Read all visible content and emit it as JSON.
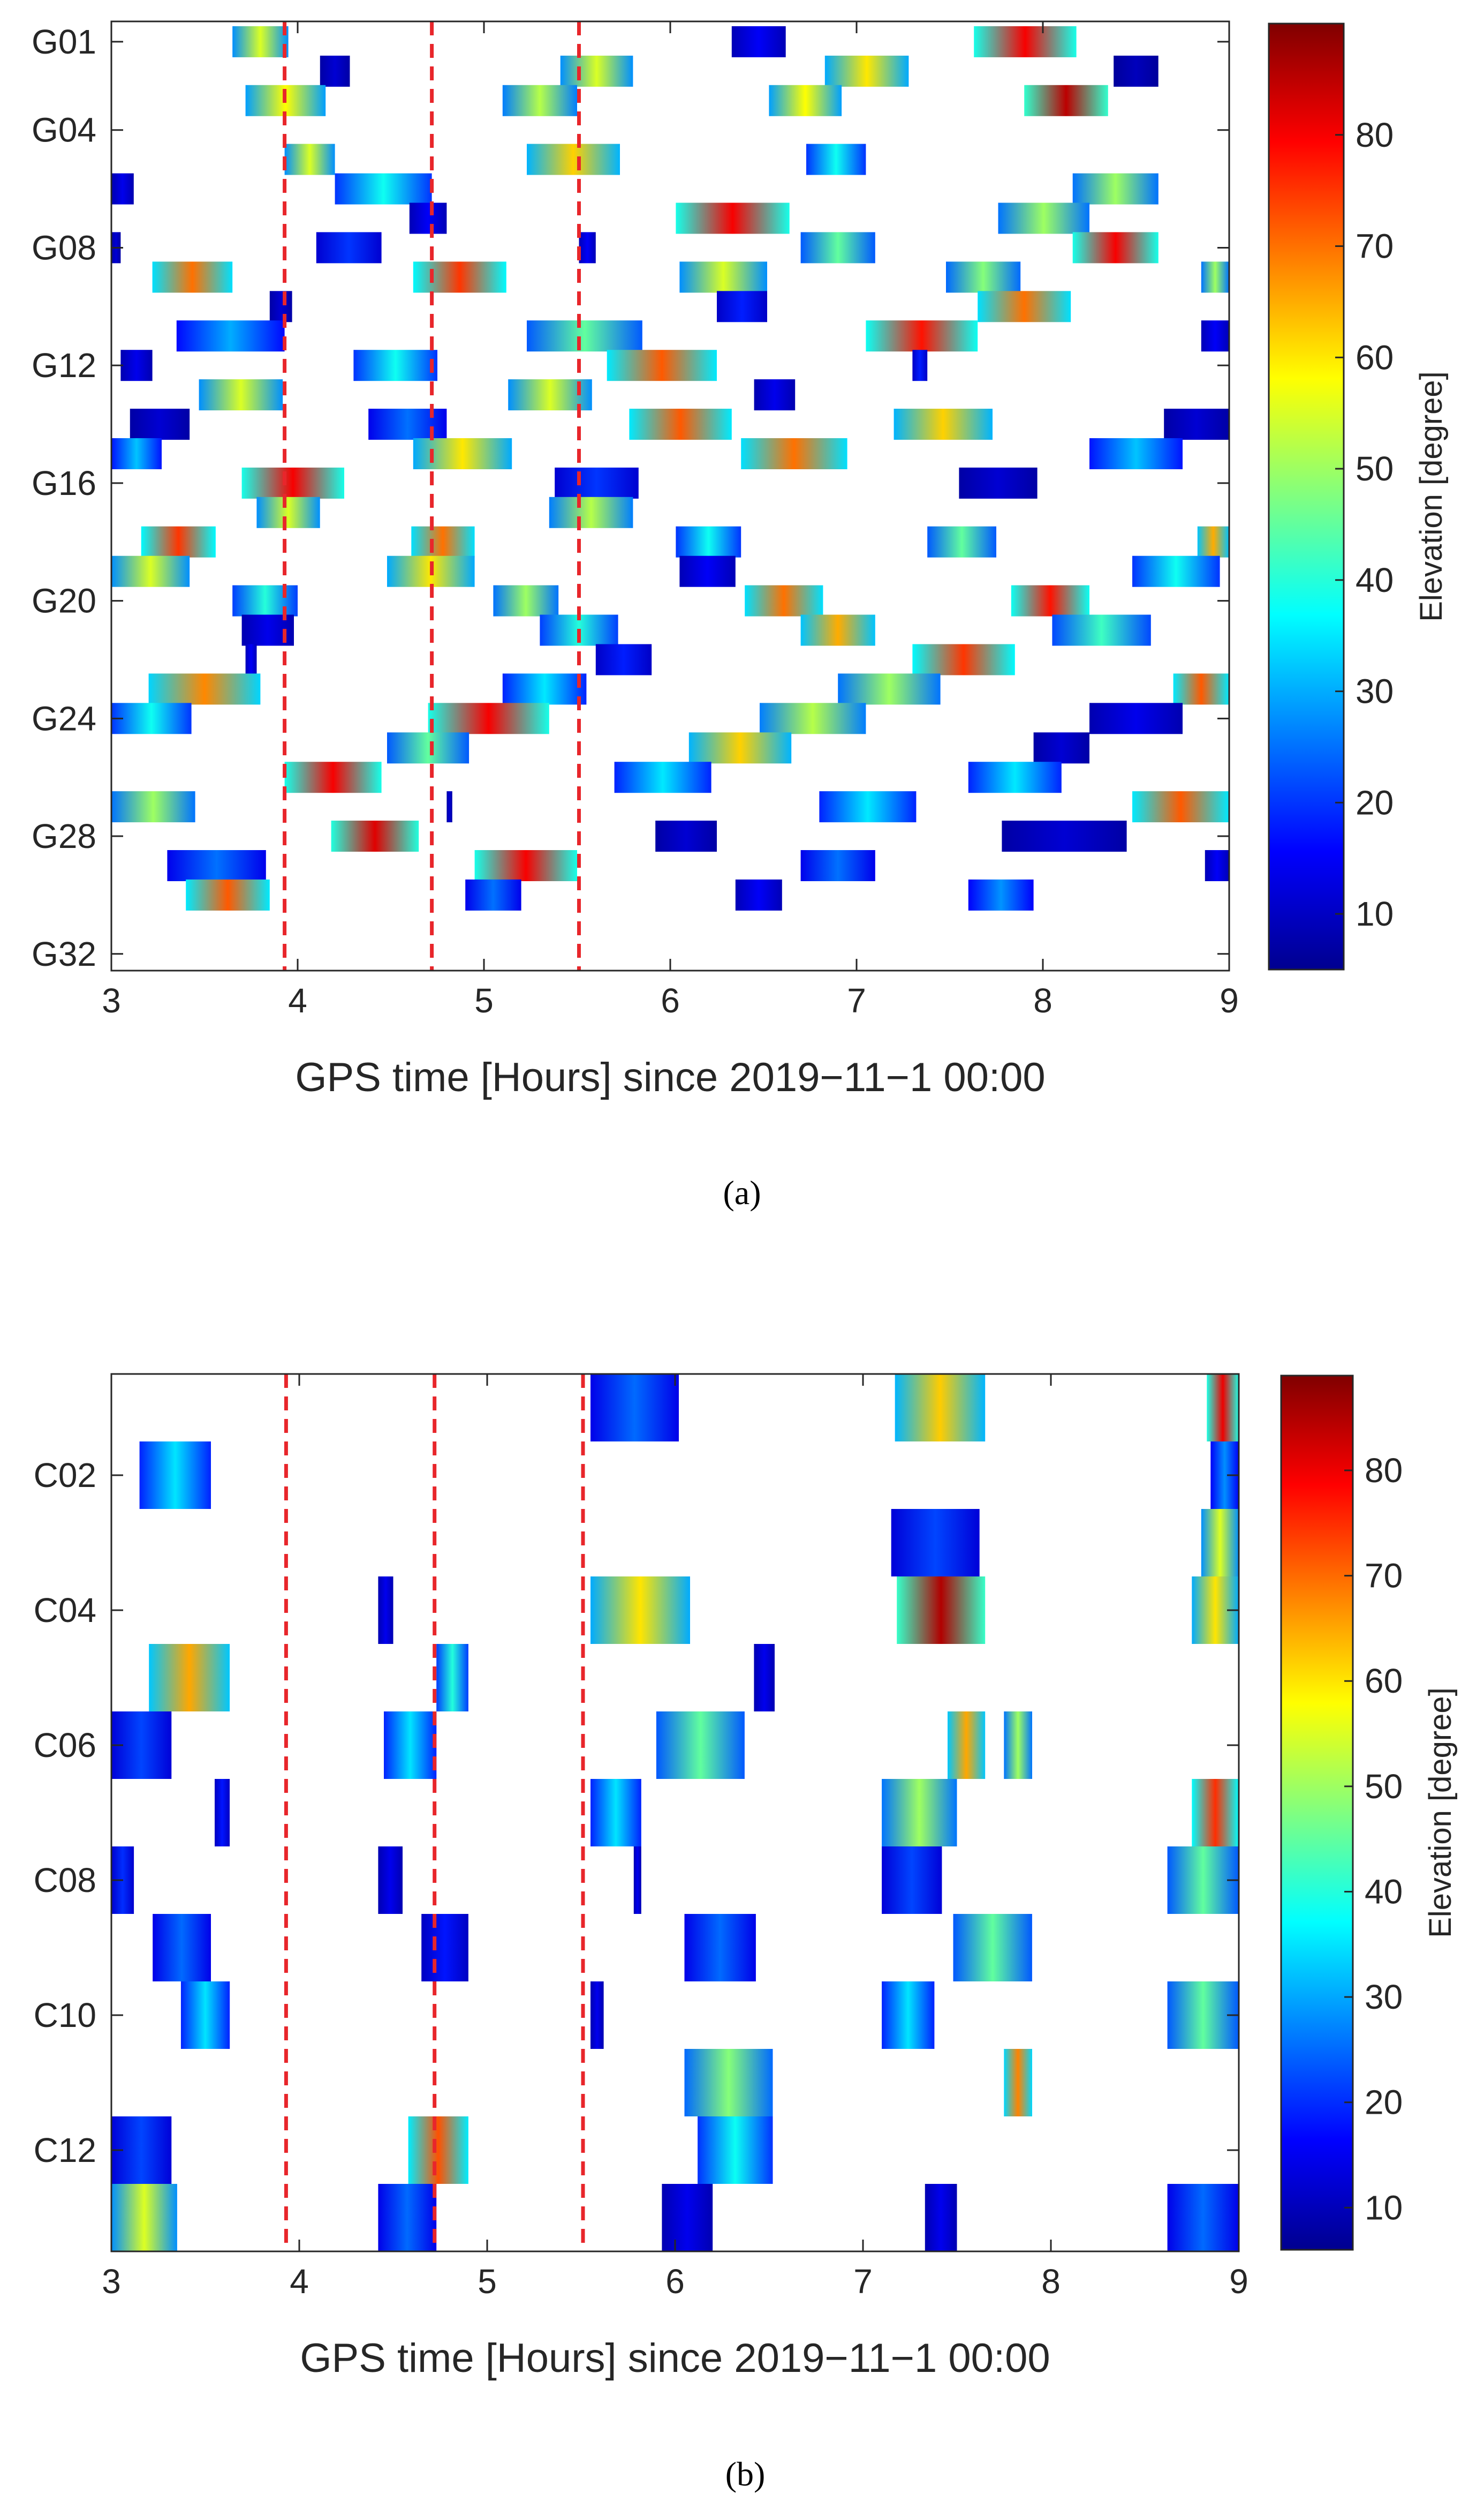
{
  "colors": {
    "ref_line": "#e8262b",
    "axis": "#262626",
    "background": "#ffffff"
  },
  "chart_data": [
    {
      "type": "heatmap",
      "panel": "a",
      "caption": "(a)",
      "title": "",
      "xlabel": "GPS time [Hours] since 2019−11−1 00:00",
      "xlim": [
        3,
        9
      ],
      "xticks": [
        3,
        4,
        5,
        6,
        7,
        8,
        9
      ],
      "ylim": [
        0.5,
        33
      ],
      "yticks": [
        1,
        4,
        8,
        12,
        16,
        20,
        24,
        28,
        32
      ],
      "ytick_labels": [
        "G01",
        "G04",
        "G08",
        "G12",
        "G16",
        "G20",
        "G24",
        "G28",
        "G32"
      ],
      "ref_lines": [
        3.93,
        4.72,
        5.51
      ],
      "colorbar": {
        "label": "Elevation [degree]",
        "range": [
          5,
          90
        ],
        "ticks": [
          10,
          20,
          30,
          40,
          50,
          60,
          70,
          80
        ]
      },
      "series": [
        {
          "name": "G01",
          "passes": [
            [
              3.65,
              3.95,
              55
            ],
            [
              6.33,
              6.62,
              15
            ],
            [
              7.63,
              8.18,
              80
            ]
          ]
        },
        {
          "name": "G02",
          "passes": [
            [
              4.12,
              4.28,
              12
            ],
            [
              5.41,
              5.8,
              55
            ],
            [
              6.83,
              7.28,
              60
            ],
            [
              8.38,
              8.62,
              10
            ]
          ]
        },
        {
          "name": "G03",
          "passes": [
            [
              3.72,
              4.15,
              58
            ],
            [
              5.1,
              5.5,
              52
            ],
            [
              6.53,
              6.92,
              58
            ],
            [
              7.9,
              8.35,
              85
            ]
          ]
        },
        {
          "name": "G04",
          "passes": []
        },
        {
          "name": "G05",
          "passes": [
            [
              3.93,
              4.2,
              55
            ],
            [
              5.23,
              5.73,
              62
            ],
            [
              6.73,
              7.05,
              38
            ]
          ]
        },
        {
          "name": "G06",
          "passes": [
            [
              3.0,
              3.12,
              14
            ],
            [
              4.2,
              4.72,
              38
            ],
            [
              8.16,
              8.62,
              50
            ]
          ]
        },
        {
          "name": "G07",
          "passes": [
            [
              4.6,
              4.8,
              15
            ],
            [
              6.03,
              6.64,
              80
            ],
            [
              7.76,
              8.25,
              50
            ]
          ]
        },
        {
          "name": "G08",
          "passes": [
            [
              3.0,
              3.05,
              12
            ],
            [
              4.1,
              4.45,
              20
            ],
            [
              5.51,
              5.6,
              15
            ],
            [
              6.7,
              7.1,
              45
            ],
            [
              8.16,
              8.62,
              80
            ]
          ]
        },
        {
          "name": "G09",
          "passes": [
            [
              3.22,
              3.65,
              70
            ],
            [
              4.62,
              5.12,
              75
            ],
            [
              6.05,
              6.52,
              55
            ],
            [
              7.48,
              7.88,
              48
            ],
            [
              8.85,
              9.0,
              50
            ]
          ]
        },
        {
          "name": "G10",
          "passes": [
            [
              3.85,
              3.97,
              12
            ],
            [
              6.25,
              6.52,
              18
            ],
            [
              7.65,
              8.15,
              70
            ]
          ]
        },
        {
          "name": "G11",
          "passes": [
            [
              3.35,
              3.93,
              30
            ],
            [
              5.23,
              5.85,
              45
            ],
            [
              7.05,
              7.65,
              78
            ],
            [
              8.85,
              9.0,
              15
            ]
          ]
        },
        {
          "name": "G12",
          "passes": [
            [
              3.05,
              3.22,
              14
            ],
            [
              4.3,
              4.75,
              38
            ],
            [
              5.66,
              6.25,
              72
            ],
            [
              7.3,
              7.38,
              18
            ]
          ]
        },
        {
          "name": "G13",
          "passes": [
            [
              3.47,
              3.92,
              55
            ],
            [
              5.13,
              5.58,
              55
            ],
            [
              6.45,
              6.67,
              14
            ]
          ]
        },
        {
          "name": "G14",
          "passes": [
            [
              3.1,
              3.42,
              12
            ],
            [
              4.38,
              4.8,
              25
            ],
            [
              5.78,
              6.33,
              72
            ],
            [
              7.2,
              7.73,
              62
            ],
            [
              8.65,
              9.0,
              12
            ]
          ]
        },
        {
          "name": "G15",
          "passes": [
            [
              3.0,
              3.27,
              32
            ],
            [
              4.62,
              5.15,
              60
            ],
            [
              6.38,
              6.95,
              70
            ],
            [
              8.25,
              8.75,
              32
            ]
          ]
        },
        {
          "name": "G16",
          "passes": [
            [
              3.7,
              4.25,
              80
            ],
            [
              5.38,
              5.83,
              20
            ],
            [
              7.55,
              7.97,
              12
            ]
          ]
        },
        {
          "name": "G17",
          "passes": [
            [
              3.78,
              4.12,
              55
            ],
            [
              5.35,
              5.8,
              52
            ]
          ]
        },
        {
          "name": "G18",
          "passes": [
            [
              3.16,
              3.56,
              75
            ],
            [
              4.61,
              4.95,
              70
            ],
            [
              6.03,
              6.38,
              38
            ],
            [
              7.38,
              7.75,
              45
            ],
            [
              8.83,
              9.0,
              65
            ]
          ]
        },
        {
          "name": "G19",
          "passes": [
            [
              3.0,
              3.42,
              55
            ],
            [
              4.48,
              4.95,
              60
            ],
            [
              6.05,
              6.35,
              15
            ],
            [
              8.48,
              8.95,
              38
            ]
          ]
        },
        {
          "name": "G20",
          "passes": [
            [
              3.65,
              4.0,
              40
            ],
            [
              5.05,
              5.4,
              50
            ],
            [
              6.4,
              6.82,
              70
            ],
            [
              7.83,
              8.25,
              78
            ]
          ]
        },
        {
          "name": "G21",
          "passes": [
            [
              3.7,
              3.98,
              14
            ],
            [
              5.3,
              5.72,
              40
            ],
            [
              6.7,
              7.1,
              65
            ],
            [
              8.05,
              8.58,
              42
            ]
          ]
        },
        {
          "name": "G22",
          "passes": [
            [
              3.72,
              3.78,
              15
            ],
            [
              5.6,
              5.9,
              18
            ],
            [
              7.3,
              7.85,
              75
            ]
          ]
        },
        {
          "name": "G23",
          "passes": [
            [
              3.2,
              3.8,
              68
            ],
            [
              5.1,
              5.55,
              35
            ],
            [
              6.9,
              7.45,
              50
            ],
            [
              8.7,
              9.0,
              72
            ]
          ]
        },
        {
          "name": "G24",
          "passes": [
            [
              3.0,
              3.43,
              38
            ],
            [
              4.7,
              5.35,
              80
            ],
            [
              6.48,
              7.05,
              52
            ],
            [
              8.25,
              8.75,
              14
            ]
          ]
        },
        {
          "name": "G25",
          "passes": [
            [
              4.48,
              4.92,
              45
            ],
            [
              6.1,
              6.65,
              62
            ],
            [
              7.95,
              8.25,
              12
            ]
          ]
        },
        {
          "name": "G26",
          "passes": [
            [
              3.93,
              4.45,
              80
            ],
            [
              5.7,
              6.22,
              35
            ],
            [
              7.6,
              8.1,
              35
            ]
          ]
        },
        {
          "name": "G27",
          "passes": [
            [
              3.0,
              3.45,
              50
            ],
            [
              4.8,
              4.83,
              12
            ],
            [
              6.8,
              7.32,
              35
            ],
            [
              8.48,
              9.0,
              72
            ]
          ]
        },
        {
          "name": "G28",
          "passes": [
            [
              4.18,
              4.65,
              82
            ],
            [
              5.92,
              6.25,
              12
            ],
            [
              7.78,
              8.45,
              12
            ]
          ]
        },
        {
          "name": "G29",
          "passes": [
            [
              3.3,
              3.83,
              25
            ],
            [
              4.95,
              5.5,
              80
            ],
            [
              6.7,
              7.1,
              25
            ],
            [
              8.87,
              9.0,
              15
            ]
          ]
        },
        {
          "name": "G30",
          "passes": [
            [
              3.4,
              3.85,
              72
            ],
            [
              4.9,
              5.2,
              25
            ],
            [
              6.35,
              6.6,
              15
            ],
            [
              7.6,
              7.95,
              28
            ]
          ]
        }
      ]
    },
    {
      "type": "heatmap",
      "panel": "b",
      "caption": "(b)",
      "title": "",
      "xlabel": "GPS time [Hours] since 2019−11−1 00:00",
      "xlim": [
        3,
        9
      ],
      "xticks": [
        3,
        4,
        5,
        6,
        7,
        8,
        9
      ],
      "ylim": [
        0.5,
        13.5
      ],
      "yticks": [
        2,
        4,
        6,
        8,
        10,
        12
      ],
      "ytick_labels": [
        "C02",
        "C04",
        "C06",
        "C08",
        "C10",
        "C12"
      ],
      "ref_lines": [
        3.93,
        4.72,
        5.51
      ],
      "colorbar": {
        "label": "Elevation [degree]",
        "range": [
          6,
          89
        ],
        "ticks": [
          10,
          20,
          30,
          40,
          50,
          60,
          70,
          80
        ]
      },
      "series": [
        {
          "name": "C01",
          "passes": [
            [
              5.55,
              6.02,
              25
            ],
            [
              7.17,
              7.65,
              62
            ],
            [
              8.83,
              9.0,
              80
            ]
          ]
        },
        {
          "name": "C02",
          "passes": [
            [
              3.15,
              3.53,
              35
            ],
            [
              8.85,
              9.0,
              28
            ]
          ]
        },
        {
          "name": "C03",
          "passes": [
            [
              7.15,
              7.62,
              22
            ],
            [
              8.8,
              9.0,
              55
            ]
          ]
        },
        {
          "name": "C04",
          "passes": [
            [
              4.42,
              4.5,
              15
            ],
            [
              5.55,
              6.08,
              60
            ],
            [
              7.18,
              7.65,
              85
            ],
            [
              8.75,
              9.0,
              60
            ]
          ]
        },
        {
          "name": "C05",
          "passes": [
            [
              3.2,
              3.63,
              65
            ],
            [
              4.73,
              4.9,
              40
            ],
            [
              6.42,
              6.53,
              15
            ]
          ]
        },
        {
          "name": "C06",
          "passes": [
            [
              3.0,
              3.32,
              22
            ],
            [
              4.45,
              4.73,
              35
            ],
            [
              5.9,
              6.37,
              45
            ],
            [
              7.45,
              7.65,
              65
            ],
            [
              7.75,
              7.9,
              50
            ]
          ]
        },
        {
          "name": "C07",
          "passes": [
            [
              3.55,
              3.63,
              18
            ],
            [
              5.55,
              5.82,
              35
            ],
            [
              7.1,
              7.5,
              50
            ],
            [
              8.75,
              9.0,
              75
            ]
          ]
        },
        {
          "name": "C08",
          "passes": [
            [
              3.0,
              3.12,
              20
            ],
            [
              4.42,
              4.55,
              15
            ],
            [
              5.78,
              5.82,
              15
            ],
            [
              7.1,
              7.42,
              22
            ],
            [
              8.62,
              9.0,
              45
            ]
          ]
        },
        {
          "name": "C09",
          "passes": [
            [
              3.22,
              3.53,
              25
            ],
            [
              4.65,
              4.9,
              18
            ],
            [
              6.05,
              6.43,
              25
            ],
            [
              7.48,
              7.9,
              45
            ]
          ]
        },
        {
          "name": "C10",
          "passes": [
            [
              3.37,
              3.63,
              35
            ],
            [
              5.55,
              5.62,
              15
            ],
            [
              7.1,
              7.38,
              35
            ],
            [
              8.62,
              9.0,
              45
            ]
          ]
        },
        {
          "name": "C11",
          "passes": [
            [
              6.05,
              6.52,
              48
            ],
            [
              7.75,
              7.9,
              68
            ]
          ]
        },
        {
          "name": "C12",
          "passes": [
            [
              3.0,
              3.32,
              22
            ],
            [
              4.58,
              4.9,
              72
            ],
            [
              6.12,
              6.52,
              38
            ]
          ]
        },
        {
          "name": "C13",
          "passes": [
            [
              3.0,
              3.35,
              55
            ],
            [
              4.42,
              4.73,
              25
            ],
            [
              5.93,
              6.2,
              15
            ],
            [
              7.33,
              7.5,
              15
            ],
            [
              8.62,
              9.0,
              25
            ]
          ]
        }
      ]
    }
  ]
}
